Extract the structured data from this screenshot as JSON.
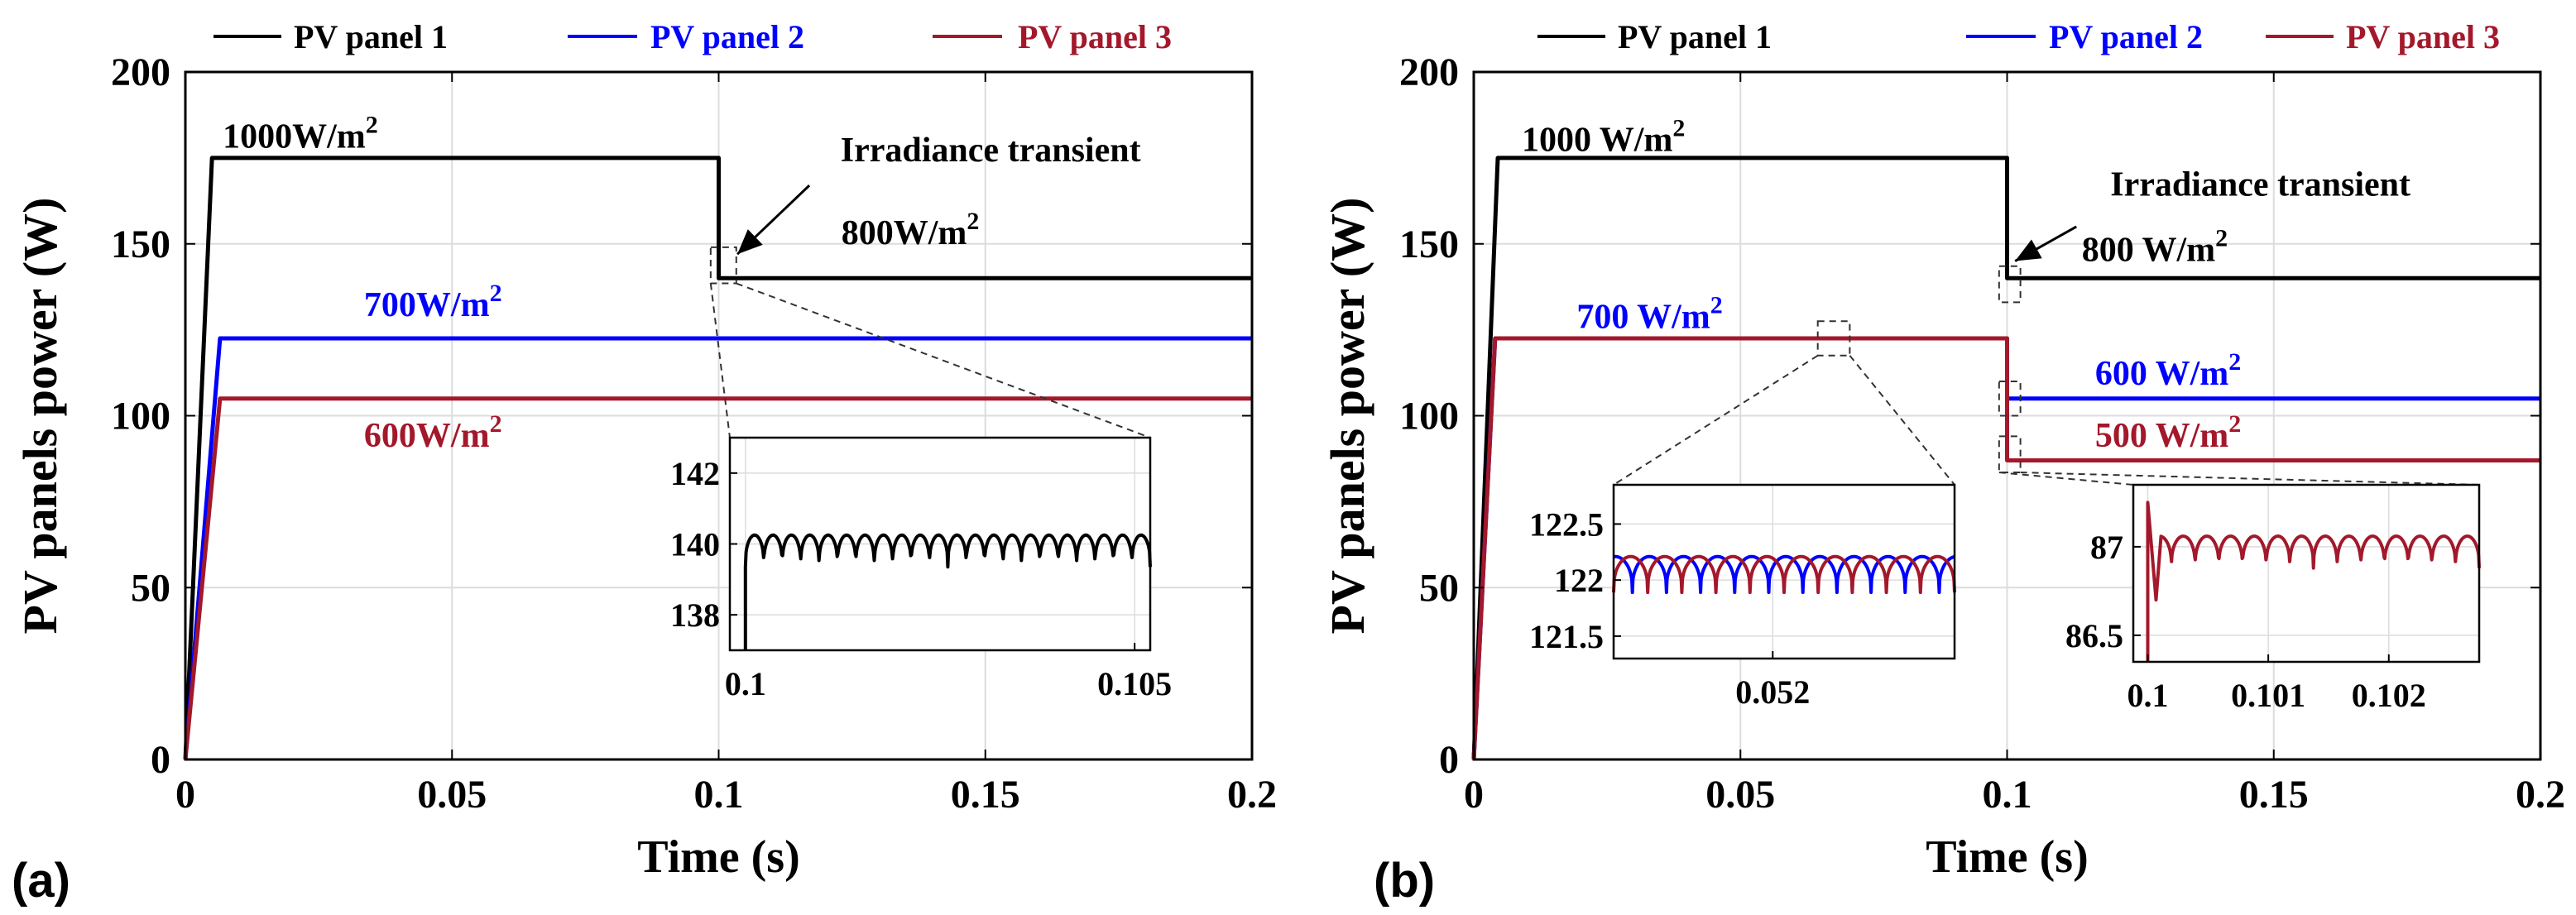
{
  "figure": {
    "panel_labels": [
      "(a)",
      "(b)"
    ]
  },
  "colors": {
    "panel1": "#000000",
    "panel2": "#0000ff",
    "panel3": "#a3182b",
    "grid": "#dcdcdc",
    "label_panel3": "#a3182b"
  },
  "chart_data": [
    {
      "id": "a",
      "type": "line",
      "xlabel": "Time (s)",
      "ylabel": "PV panels power (W)",
      "xlim": [
        0,
        0.2
      ],
      "ylim": [
        0,
        200
      ],
      "xticks": [
        0,
        0.05,
        0.1,
        0.15,
        0.2
      ],
      "xtick_labels": [
        "0",
        "0.05",
        "0.1",
        "0.15",
        "0.2"
      ],
      "yticks": [
        0,
        50,
        100,
        150,
        200
      ],
      "ytick_labels": [
        "0",
        "50",
        "100",
        "150",
        "200"
      ],
      "grid": true,
      "legend": [
        "PV panel 1",
        "PV panel 2",
        "PV panel 3"
      ],
      "legend_position": "top",
      "series": [
        {
          "name": "PV panel 1",
          "color_key": "panel1",
          "x": [
            0,
            0.005,
            0.1,
            0.1,
            0.2
          ],
          "y": [
            0,
            175,
            175,
            140,
            140
          ]
        },
        {
          "name": "PV panel 2",
          "color_key": "panel2",
          "x": [
            0,
            0.0065,
            0.2
          ],
          "y": [
            0,
            122.5,
            122.5
          ]
        },
        {
          "name": "PV panel 3",
          "color_key": "panel3",
          "x": [
            0,
            0.0065,
            0.2
          ],
          "y": [
            0,
            105,
            105
          ]
        }
      ],
      "annotations": [
        {
          "base": "1000W/m",
          "sup": "2",
          "color_key": "panel1",
          "x": 0.007,
          "y": 178
        },
        {
          "base": "800W/m",
          "sup": "2",
          "color_key": "panel1",
          "x": 0.123,
          "y": 150
        },
        {
          "base": "700W/m",
          "sup": "2",
          "color_key": "panel2",
          "x": 0.0335,
          "y": 129
        },
        {
          "base": "600W/m",
          "sup": "2",
          "color_key": "panel3",
          "x": 0.0335,
          "y": 91
        }
      ],
      "callout": {
        "text": "Irradiance transient",
        "x": 0.151,
        "y": 174,
        "arrow_from": [
          0.117,
          167
        ],
        "arrow_to": [
          0.1035,
          147
        ]
      },
      "insets": [
        {
          "xlim": [
            0.0998,
            0.1052
          ],
          "ylim": [
            137,
            143
          ],
          "yticks": [
            138,
            140,
            142
          ],
          "ytick_labels": [
            "138",
            "140",
            "142"
          ],
          "xticks": [
            0.1,
            0.105
          ],
          "xtick_labels": [
            "0.1",
            "0.105"
          ],
          "source": {
            "x0": 0.0985,
            "x1": 0.1033,
            "y0": 138.5,
            "y1": 149
          },
          "series": [
            {
              "color_key": "panel1",
              "mean": 139.8,
              "ripple": 0.45,
              "cycles": 22,
              "x_start": 0.1,
              "x_end": 0.1052,
              "spike_from": 137
            }
          ]
        }
      ]
    },
    {
      "id": "b",
      "type": "line",
      "xlabel": "Time (s)",
      "ylabel": "PV panels power (W)",
      "xlim": [
        0,
        0.2
      ],
      "ylim": [
        0,
        200
      ],
      "xticks": [
        0,
        0.05,
        0.1,
        0.15,
        0.2
      ],
      "xtick_labels": [
        "0",
        "0.05",
        "0.1",
        "0.15",
        "0.2"
      ],
      "yticks": [
        0,
        50,
        100,
        150,
        200
      ],
      "ytick_labels": [
        "0",
        "50",
        "100",
        "150",
        "200"
      ],
      "grid": true,
      "legend": [
        "PV panel 1",
        "PV panel 2",
        "PV panel 3"
      ],
      "legend_position": "top",
      "series": [
        {
          "name": "PV panel 1",
          "color_key": "panel1",
          "x": [
            0,
            0.0045,
            0.1,
            0.1,
            0.2
          ],
          "y": [
            0,
            175,
            175,
            140,
            140
          ]
        },
        {
          "name": "PV panel 2",
          "color_key": "panel2",
          "x": [
            0,
            0.004,
            0.1,
            0.1,
            0.2
          ],
          "y": [
            0,
            122.5,
            122.5,
            105,
            105
          ]
        },
        {
          "name": "PV panel 3",
          "color_key": "panel3",
          "x": [
            0,
            0.004,
            0.1,
            0.1,
            0.2
          ],
          "y": [
            0,
            122.5,
            122.5,
            87,
            87
          ]
        }
      ],
      "annotations": [
        {
          "base": "1000 W/m",
          "sup": "2",
          "color_key": "panel1",
          "x": 0.009,
          "y": 177
        },
        {
          "base": "800 W/m",
          "sup": "2",
          "color_key": "panel1",
          "x": 0.114,
          "y": 145
        },
        {
          "base": "700 W/m",
          "sup": "2",
          "color_key": "panel2",
          "x": 0.0193,
          "y": 125.5
        },
        {
          "base": "600 W/m",
          "sup": "2",
          "color_key": "panel2",
          "x": 0.1165,
          "y": 109
        },
        {
          "base": "500 W/m",
          "sup": "2",
          "color_key": "panel3",
          "x": 0.1165,
          "y": 91
        }
      ],
      "callout": {
        "text": "Irradiance transient",
        "x": 0.1475,
        "y": 164,
        "arrow_from": [
          0.113,
          155
        ],
        "arrow_to": [
          0.1015,
          145
        ]
      },
      "insets": [
        {
          "xlim": [
            0.0513,
            0.0528
          ],
          "ylim": [
            121.3,
            122.85
          ],
          "yticks": [
            121.5,
            122,
            122.5
          ],
          "ytick_labels": [
            "121.5",
            "122",
            "122.5"
          ],
          "xticks": [
            0.052
          ],
          "xtick_labels": [
            "0.052"
          ],
          "source": {
            "x0": 0.0645,
            "x1": 0.0705,
            "y0": 117.5,
            "y1": 127.5
          },
          "series": [
            {
              "color_key": "panel2",
              "mean": 122.05,
              "ripple": 0.16,
              "cycles": 10,
              "phase": 0.45,
              "x_start": 0.0513,
              "x_end": 0.0528
            },
            {
              "color_key": "panel3",
              "mean": 122.05,
              "ripple": 0.16,
              "cycles": 10,
              "phase": 0.0,
              "x_start": 0.0513,
              "x_end": 0.0528
            }
          ]
        },
        {
          "xlim": [
            0.09988,
            0.10275
          ],
          "ylim": [
            86.35,
            87.35
          ],
          "yticks": [
            86.5,
            87
          ],
          "ytick_labels": [
            "86.5",
            "87"
          ],
          "xticks": [
            0.1,
            0.101,
            0.102
          ],
          "xtick_labels": [
            "0.1",
            "0.101",
            "0.102"
          ],
          "source": {
            "x0": 0.0985,
            "x1": 0.1025,
            "y0": 83.5,
            "y1": 94
          },
          "series": [
            {
              "color_key": "panel3",
              "mean": 86.97,
              "ripple": 0.09,
              "cycles": 14,
              "x_start": 0.1,
              "x_end": 0.10275,
              "spike_from": 86.35,
              "spike_to": 87.25,
              "dip": 86.7
            }
          ]
        }
      ],
      "extra_boxes": [
        {
          "x0": 0.0985,
          "x1": 0.1025,
          "y0": 133,
          "y1": 143.5
        },
        {
          "x0": 0.0985,
          "x1": 0.1025,
          "y0": 100,
          "y1": 110
        }
      ]
    }
  ]
}
